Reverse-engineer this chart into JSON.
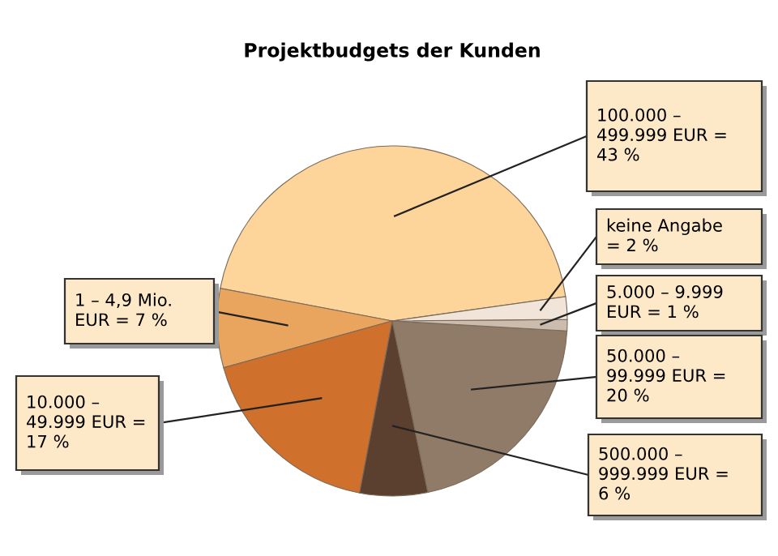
{
  "chart_data": {
    "type": "pie",
    "title": "Projektbudgets der Kunden",
    "categories": [
      "100.000 –\n499.999 EUR =",
      "1 – 4,9 Mio.\nEUR =",
      "10.000 –\n49.999 EUR =",
      "500.000 –\n999.999 EUR =",
      "50.000 –\n99.999 EUR =",
      "5.000 – 9.999\nEUR =",
      "keine Angabe"
    ],
    "values": [
      43,
      7,
      17,
      6,
      20,
      1,
      2
    ],
    "value_labels": [
      "43 %",
      "7 %",
      "17 %",
      "6 %",
      "20 %",
      "1 %",
      "= 2 %"
    ],
    "colors": [
      "#fdd59b",
      "#e9a55e",
      "#cf702c",
      "#5b4030",
      "#907a68",
      "#cbbcae",
      "#f0e5d8"
    ]
  }
}
